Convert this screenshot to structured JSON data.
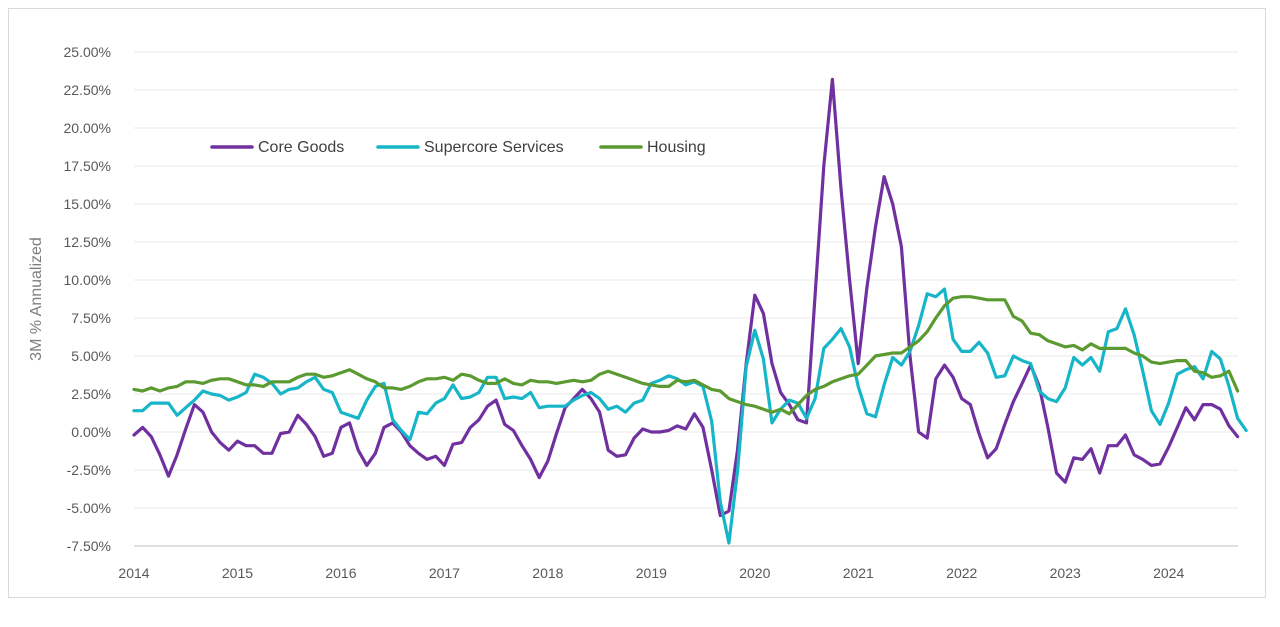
{
  "chart_data": {
    "type": "line",
    "title": "",
    "xlabel": "",
    "ylabel": "3M % Annualized",
    "ylim": [
      -7.5,
      25
    ],
    "y_ticks": [
      "25.00%",
      "22.50%",
      "20.00%",
      "17.50%",
      "15.00%",
      "12.50%",
      "10.00%",
      "7.50%",
      "5.00%",
      "2.50%",
      "0.00%",
      "-2.50%",
      "-5.00%",
      "-7.50%"
    ],
    "y_tick_values": [
      25,
      22.5,
      20,
      17.5,
      15,
      12.5,
      10,
      7.5,
      5,
      2.5,
      0,
      -2.5,
      -5,
      -7.5
    ],
    "x_start": 2014.0,
    "x_step": 0.08333,
    "xlim": [
      2014.0,
      2024.67
    ],
    "x_ticks": [
      "2014",
      "2015",
      "2016",
      "2017",
      "2018",
      "2019",
      "2020",
      "2021",
      "2022",
      "2023",
      "2024"
    ],
    "x_tick_values": [
      2014,
      2015,
      2016,
      2017,
      2018,
      2019,
      2020,
      2021,
      2022,
      2023,
      2024
    ],
    "legend_position": "top-left",
    "grid": true,
    "colors": {
      "Core Goods": "#7030a0",
      "Supercore Services": "#17b5c8",
      "Housing": "#5b9a31",
      "grid": "#eaeaea",
      "axis": "#bfbfbf"
    },
    "series": [
      {
        "name": "Core Goods",
        "color": "#7030a0",
        "values": [
          -0.2,
          0.3,
          -0.3,
          -1.5,
          -2.9,
          -1.5,
          0.2,
          1.8,
          1.3,
          0.0,
          -0.7,
          -1.2,
          -0.6,
          -0.9,
          -0.9,
          -1.4,
          -1.4,
          -0.1,
          0.0,
          1.1,
          0.5,
          -0.3,
          -1.6,
          -1.4,
          0.3,
          0.6,
          -1.2,
          -2.2,
          -1.4,
          0.3,
          0.6,
          0.0,
          -0.9,
          -1.4,
          -1.8,
          -1.6,
          -2.2,
          -0.8,
          -0.7,
          0.3,
          0.8,
          1.7,
          2.1,
          0.5,
          0.1,
          -0.9,
          -1.8,
          -3.0,
          -1.9,
          -0.1,
          1.6,
          2.2,
          2.8,
          2.2,
          1.3,
          -1.2,
          -1.6,
          -1.5,
          -0.4,
          0.2,
          0.0,
          0.0,
          0.1,
          0.4,
          0.2,
          1.2,
          0.3,
          -2.5,
          -5.5,
          -5.2,
          -1.2,
          4.5,
          9.0,
          7.8,
          4.5,
          2.6,
          1.8,
          0.8,
          0.6,
          9.0,
          17.5,
          23.2,
          16.0,
          10.0,
          4.5,
          9.5,
          13.5,
          16.8,
          15.0,
          12.2,
          5.0,
          0.0,
          -0.4,
          3.5,
          4.4,
          3.6,
          2.2,
          1.8,
          -0.1,
          -1.7,
          -1.1,
          0.5,
          2.0,
          3.2,
          4.4,
          3.0,
          0.3,
          -2.7,
          -3.3,
          -1.7,
          -1.8,
          -1.1,
          -2.7,
          -0.9,
          -0.9,
          -0.2,
          -1.5,
          -1.8,
          -2.2,
          -2.1,
          -1.0,
          0.3,
          1.6,
          0.8,
          1.8,
          1.8,
          1.5,
          0.4,
          -0.3
        ]
      },
      {
        "name": "Supercore Services",
        "color": "#17b5c8",
        "values": [
          1.4,
          1.4,
          1.9,
          1.9,
          1.9,
          1.1,
          1.6,
          2.1,
          2.7,
          2.5,
          2.4,
          2.1,
          2.3,
          2.6,
          3.8,
          3.6,
          3.2,
          2.5,
          2.8,
          2.9,
          3.3,
          3.6,
          2.8,
          2.6,
          1.3,
          1.1,
          0.9,
          2.1,
          3.0,
          3.2,
          0.8,
          0.1,
          -0.5,
          1.3,
          1.2,
          1.9,
          2.2,
          3.1,
          2.2,
          2.3,
          2.6,
          3.6,
          3.6,
          2.2,
          2.3,
          2.2,
          2.6,
          1.6,
          1.7,
          1.7,
          1.7,
          2.1,
          2.4,
          2.6,
          2.2,
          1.5,
          1.7,
          1.3,
          1.9,
          2.1,
          3.2,
          3.4,
          3.7,
          3.5,
          3.1,
          3.3,
          3.0,
          0.7,
          -4.6,
          -7.3,
          -2.6,
          4.3,
          6.7,
          4.8,
          0.6,
          1.5,
          2.1,
          1.9,
          0.9,
          2.2,
          5.5,
          6.1,
          6.8,
          5.6,
          3.0,
          1.2,
          1.0,
          3.1,
          4.9,
          4.4,
          5.3,
          7.0,
          9.1,
          8.9,
          9.4,
          6.1,
          5.3,
          5.3,
          5.9,
          5.2,
          3.6,
          3.7,
          5.0,
          4.7,
          4.5,
          2.7,
          2.2,
          2.0,
          2.9,
          4.9,
          4.4,
          4.9,
          4.0,
          6.6,
          6.8,
          8.1,
          6.4,
          4.0,
          1.4,
          0.5,
          1.9,
          3.8,
          4.1,
          4.3,
          3.5,
          5.3,
          4.8,
          3.0,
          0.9,
          0.1
        ]
      },
      {
        "name": "Housing",
        "color": "#5b9a31",
        "values": [
          2.8,
          2.7,
          2.9,
          2.7,
          2.9,
          3.0,
          3.3,
          3.3,
          3.2,
          3.4,
          3.5,
          3.5,
          3.3,
          3.1,
          3.1,
          3.0,
          3.3,
          3.3,
          3.3,
          3.6,
          3.8,
          3.8,
          3.6,
          3.7,
          3.9,
          4.1,
          3.8,
          3.5,
          3.3,
          2.9,
          2.9,
          2.8,
          3.0,
          3.3,
          3.5,
          3.5,
          3.6,
          3.4,
          3.8,
          3.7,
          3.4,
          3.2,
          3.2,
          3.5,
          3.2,
          3.1,
          3.4,
          3.3,
          3.3,
          3.2,
          3.3,
          3.4,
          3.3,
          3.4,
          3.8,
          4.0,
          3.8,
          3.6,
          3.4,
          3.2,
          3.1,
          3.0,
          3.0,
          3.4,
          3.3,
          3.4,
          3.1,
          2.8,
          2.7,
          2.2,
          2.0,
          1.8,
          1.7,
          1.5,
          1.3,
          1.5,
          1.2,
          1.8,
          2.4,
          2.8,
          3.0,
          3.3,
          3.5,
          3.7,
          3.8,
          4.4,
          5.0,
          5.1,
          5.2,
          5.2,
          5.6,
          6.0,
          6.6,
          7.5,
          8.3,
          8.8,
          8.9,
          8.9,
          8.8,
          8.7,
          8.7,
          8.7,
          7.6,
          7.3,
          6.5,
          6.4,
          6.0,
          5.8,
          5.6,
          5.7,
          5.4,
          5.8,
          5.5,
          5.5,
          5.5,
          5.5,
          5.2,
          5.0,
          4.6,
          4.5,
          4.6,
          4.7,
          4.7,
          4.0,
          3.9,
          3.6,
          3.7,
          4.0,
          2.7
        ]
      }
    ]
  }
}
